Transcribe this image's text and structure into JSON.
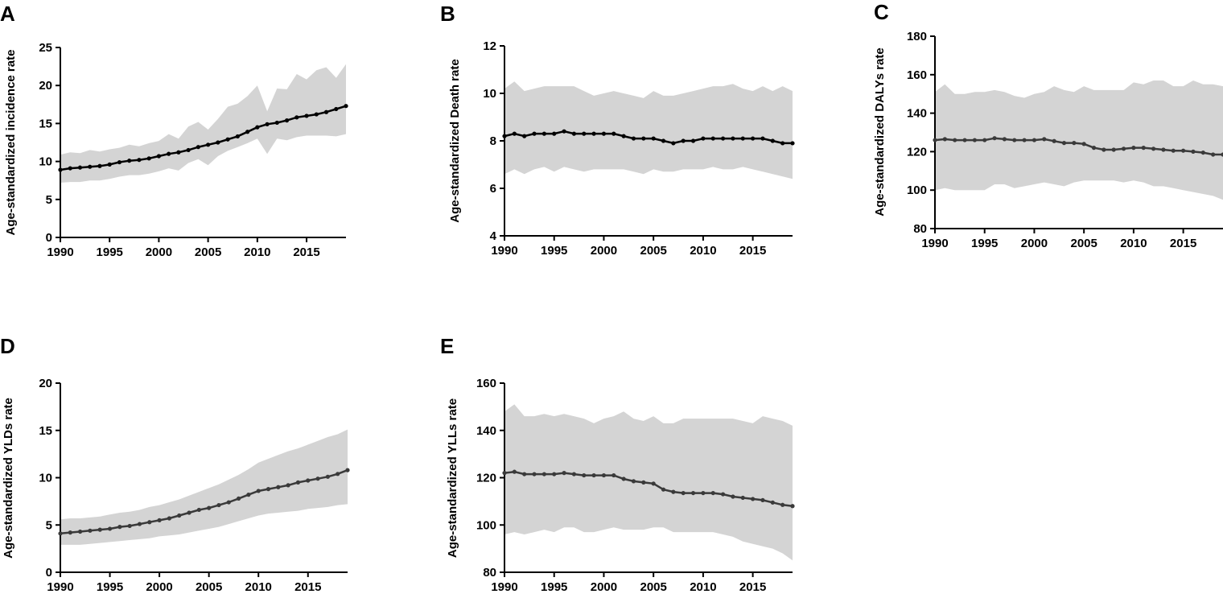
{
  "chart_data": [
    {
      "type": "line",
      "panel": "A",
      "title": "",
      "xlabel": "",
      "ylabel": "Age-standardized incidence rate",
      "xlim": [
        1990,
        2019
      ],
      "ylim": [
        0,
        25
      ],
      "xticks": [
        1990,
        1995,
        2000,
        2005,
        2010,
        2015
      ],
      "yticks": [
        0,
        5,
        10,
        15,
        20,
        25
      ],
      "line_color": "#000000",
      "band_color": "#d4d4d4",
      "x": [
        1990,
        1991,
        1992,
        1993,
        1994,
        1995,
        1996,
        1997,
        1998,
        1999,
        2000,
        2001,
        2002,
        2003,
        2004,
        2005,
        2006,
        2007,
        2008,
        2009,
        2010,
        2011,
        2012,
        2013,
        2014,
        2015,
        2016,
        2017,
        2018,
        2019
      ],
      "series": [
        {
          "name": "estimate",
          "values": [
            8.9,
            9.1,
            9.2,
            9.3,
            9.4,
            9.6,
            9.9,
            10.1,
            10.2,
            10.4,
            10.7,
            11.0,
            11.2,
            11.5,
            11.9,
            12.2,
            12.5,
            12.9,
            13.3,
            13.9,
            14.5,
            14.9,
            15.1,
            15.4,
            15.8,
            16.0,
            16.2,
            16.5,
            16.9,
            17.3
          ]
        },
        {
          "name": "upper",
          "values": [
            10.9,
            11.2,
            11.1,
            11.5,
            11.3,
            11.6,
            11.8,
            12.2,
            12.0,
            12.4,
            12.7,
            13.6,
            13.0,
            14.6,
            15.2,
            14.2,
            15.6,
            17.2,
            17.6,
            18.6,
            20.0,
            16.6,
            19.6,
            19.5,
            21.5,
            20.8,
            22.0,
            22.4,
            21.0,
            22.8
          ]
        },
        {
          "name": "lower",
          "values": [
            7.2,
            7.3,
            7.3,
            7.5,
            7.5,
            7.7,
            8.0,
            8.2,
            8.2,
            8.4,
            8.7,
            9.1,
            8.8,
            9.8,
            10.3,
            9.5,
            10.7,
            11.4,
            11.9,
            12.4,
            13.0,
            11.0,
            13.0,
            12.8,
            13.2,
            13.4,
            13.4,
            13.4,
            13.3,
            13.6
          ]
        }
      ]
    },
    {
      "type": "line",
      "panel": "B",
      "title": "",
      "xlabel": "",
      "ylabel": "Age-standardized Death rate",
      "xlim": [
        1990,
        2019
      ],
      "ylim": [
        4,
        12
      ],
      "xticks": [
        1990,
        1995,
        2000,
        2005,
        2010,
        2015
      ],
      "yticks": [
        4,
        6,
        8,
        10,
        12
      ],
      "line_color": "#000000",
      "band_color": "#d4d4d4",
      "x": [
        1990,
        1991,
        1992,
        1993,
        1994,
        1995,
        1996,
        1997,
        1998,
        1999,
        2000,
        2001,
        2002,
        2003,
        2004,
        2005,
        2006,
        2007,
        2008,
        2009,
        2010,
        2011,
        2012,
        2013,
        2014,
        2015,
        2016,
        2017,
        2018,
        2019
      ],
      "series": [
        {
          "name": "estimate",
          "values": [
            8.2,
            8.3,
            8.2,
            8.3,
            8.3,
            8.3,
            8.4,
            8.3,
            8.3,
            8.3,
            8.3,
            8.3,
            8.2,
            8.1,
            8.1,
            8.1,
            8.0,
            7.9,
            8.0,
            8.0,
            8.1,
            8.1,
            8.1,
            8.1,
            8.1,
            8.1,
            8.1,
            8.0,
            7.9,
            7.9
          ]
        },
        {
          "name": "upper",
          "values": [
            10.2,
            10.5,
            10.1,
            10.2,
            10.3,
            10.3,
            10.3,
            10.3,
            10.1,
            9.9,
            10.0,
            10.1,
            10.0,
            9.9,
            9.8,
            10.1,
            9.9,
            9.9,
            10.0,
            10.1,
            10.2,
            10.3,
            10.3,
            10.4,
            10.2,
            10.1,
            10.3,
            10.1,
            10.3,
            10.1
          ]
        },
        {
          "name": "lower",
          "values": [
            6.6,
            6.8,
            6.6,
            6.8,
            6.9,
            6.7,
            6.9,
            6.8,
            6.7,
            6.8,
            6.8,
            6.8,
            6.8,
            6.7,
            6.6,
            6.8,
            6.7,
            6.7,
            6.8,
            6.8,
            6.8,
            6.9,
            6.8,
            6.8,
            6.9,
            6.8,
            6.7,
            6.6,
            6.5,
            6.4
          ]
        }
      ]
    },
    {
      "type": "line",
      "panel": "C",
      "title": "",
      "xlabel": "",
      "ylabel": "Age-standardized DALYs rate",
      "xlim": [
        1990,
        2019
      ],
      "ylim": [
        80,
        180
      ],
      "xticks": [
        1990,
        1995,
        2000,
        2005,
        2010,
        2015
      ],
      "yticks": [
        80,
        100,
        120,
        140,
        160,
        180
      ],
      "line_color": "#3a3a3a",
      "band_color": "#d4d4d4",
      "x": [
        1990,
        1991,
        1992,
        1993,
        1994,
        1995,
        1996,
        1997,
        1998,
        1999,
        2000,
        2001,
        2002,
        2003,
        2004,
        2005,
        2006,
        2007,
        2008,
        2009,
        2010,
        2011,
        2012,
        2013,
        2014,
        2015,
        2016,
        2017,
        2018,
        2019
      ],
      "series": [
        {
          "name": "estimate",
          "values": [
            126,
            126.5,
            126,
            126,
            126,
            126,
            127,
            126.5,
            126,
            126,
            126,
            126.5,
            125.5,
            124.5,
            124.5,
            124,
            122,
            121,
            121,
            121.5,
            122,
            122,
            121.5,
            121,
            120.5,
            120.5,
            120,
            119.5,
            118.5,
            118.5
          ]
        },
        {
          "name": "upper",
          "values": [
            151,
            155,
            150,
            150,
            151,
            151,
            152,
            151,
            149,
            148,
            150,
            151,
            154,
            152,
            151,
            154,
            152,
            152,
            152,
            152,
            156,
            155,
            157,
            157,
            154,
            154,
            157,
            155,
            155,
            154
          ]
        },
        {
          "name": "lower",
          "values": [
            100,
            101,
            100,
            100,
            100,
            100,
            103,
            103,
            101,
            102,
            103,
            104,
            103,
            102,
            104,
            105,
            105,
            105,
            105,
            104,
            105,
            104,
            102,
            102,
            101,
            100,
            99,
            98,
            97,
            95
          ]
        }
      ]
    },
    {
      "type": "line",
      "panel": "D",
      "title": "",
      "xlabel": "",
      "ylabel": "Age-standardized YLDs rate",
      "xlim": [
        1990,
        2019
      ],
      "ylim": [
        0,
        20
      ],
      "xticks": [
        1990,
        1995,
        2000,
        2005,
        2010,
        2015
      ],
      "yticks": [
        0,
        5,
        10,
        15,
        20
      ],
      "line_color": "#3a3a3a",
      "band_color": "#d4d4d4",
      "x": [
        1990,
        1991,
        1992,
        1993,
        1994,
        1995,
        1996,
        1997,
        1998,
        1999,
        2000,
        2001,
        2002,
        2003,
        2004,
        2005,
        2006,
        2007,
        2008,
        2009,
        2010,
        2011,
        2012,
        2013,
        2014,
        2015,
        2016,
        2017,
        2018,
        2019
      ],
      "series": [
        {
          "name": "estimate",
          "values": [
            4.1,
            4.2,
            4.3,
            4.4,
            4.5,
            4.6,
            4.8,
            4.9,
            5.1,
            5.3,
            5.5,
            5.7,
            6.0,
            6.3,
            6.6,
            6.8,
            7.1,
            7.4,
            7.8,
            8.2,
            8.6,
            8.8,
            9.0,
            9.2,
            9.5,
            9.7,
            9.9,
            10.1,
            10.4,
            10.8
          ]
        },
        {
          "name": "upper",
          "values": [
            5.6,
            5.7,
            5.7,
            5.8,
            5.9,
            6.1,
            6.3,
            6.4,
            6.6,
            6.9,
            7.1,
            7.4,
            7.7,
            8.1,
            8.5,
            8.9,
            9.3,
            9.8,
            10.3,
            10.9,
            11.6,
            12.0,
            12.4,
            12.8,
            13.1,
            13.5,
            13.9,
            14.3,
            14.6,
            15.1
          ]
        },
        {
          "name": "lower",
          "values": [
            2.9,
            2.9,
            2.9,
            3.0,
            3.1,
            3.2,
            3.3,
            3.4,
            3.5,
            3.6,
            3.8,
            3.9,
            4.0,
            4.2,
            4.4,
            4.6,
            4.8,
            5.1,
            5.4,
            5.7,
            6.0,
            6.2,
            6.3,
            6.4,
            6.5,
            6.7,
            6.8,
            6.9,
            7.1,
            7.2
          ]
        }
      ]
    },
    {
      "type": "line",
      "panel": "E",
      "title": "",
      "xlabel": "",
      "ylabel": "Age-standardized YLLs rate",
      "xlim": [
        1990,
        2019
      ],
      "ylim": [
        80,
        160
      ],
      "xticks": [
        1990,
        1995,
        2000,
        2005,
        2010,
        2015
      ],
      "yticks": [
        80,
        100,
        120,
        140,
        160
      ],
      "line_color": "#3a3a3a",
      "band_color": "#d4d4d4",
      "x": [
        1990,
        1991,
        1992,
        1993,
        1994,
        1995,
        1996,
        1997,
        1998,
        1999,
        2000,
        2001,
        2002,
        2003,
        2004,
        2005,
        2006,
        2007,
        2008,
        2009,
        2010,
        2011,
        2012,
        2013,
        2014,
        2015,
        2016,
        2017,
        2018,
        2019
      ],
      "series": [
        {
          "name": "estimate",
          "values": [
            122,
            122.5,
            121.5,
            121.5,
            121.5,
            121.5,
            122,
            121.5,
            121,
            121,
            121,
            121,
            119.5,
            118.5,
            118,
            117.5,
            115,
            114,
            113.5,
            113.5,
            113.5,
            113.5,
            113,
            112,
            111.5,
            111,
            110.5,
            109.5,
            108.5,
            108
          ]
        },
        {
          "name": "upper",
          "values": [
            148,
            151,
            146,
            146,
            147,
            146,
            147,
            146,
            145,
            143,
            145,
            146,
            148,
            145,
            144,
            146,
            143,
            143,
            145,
            145,
            145,
            145,
            145,
            145,
            144,
            143,
            146,
            145,
            144,
            142
          ]
        },
        {
          "name": "lower",
          "values": [
            96,
            97,
            96,
            97,
            98,
            97,
            99,
            99,
            97,
            97,
            98,
            99,
            98,
            98,
            98,
            99,
            99,
            97,
            97,
            97,
            97,
            97,
            96,
            95,
            93,
            92,
            91,
            90,
            88,
            85
          ]
        }
      ]
    }
  ]
}
